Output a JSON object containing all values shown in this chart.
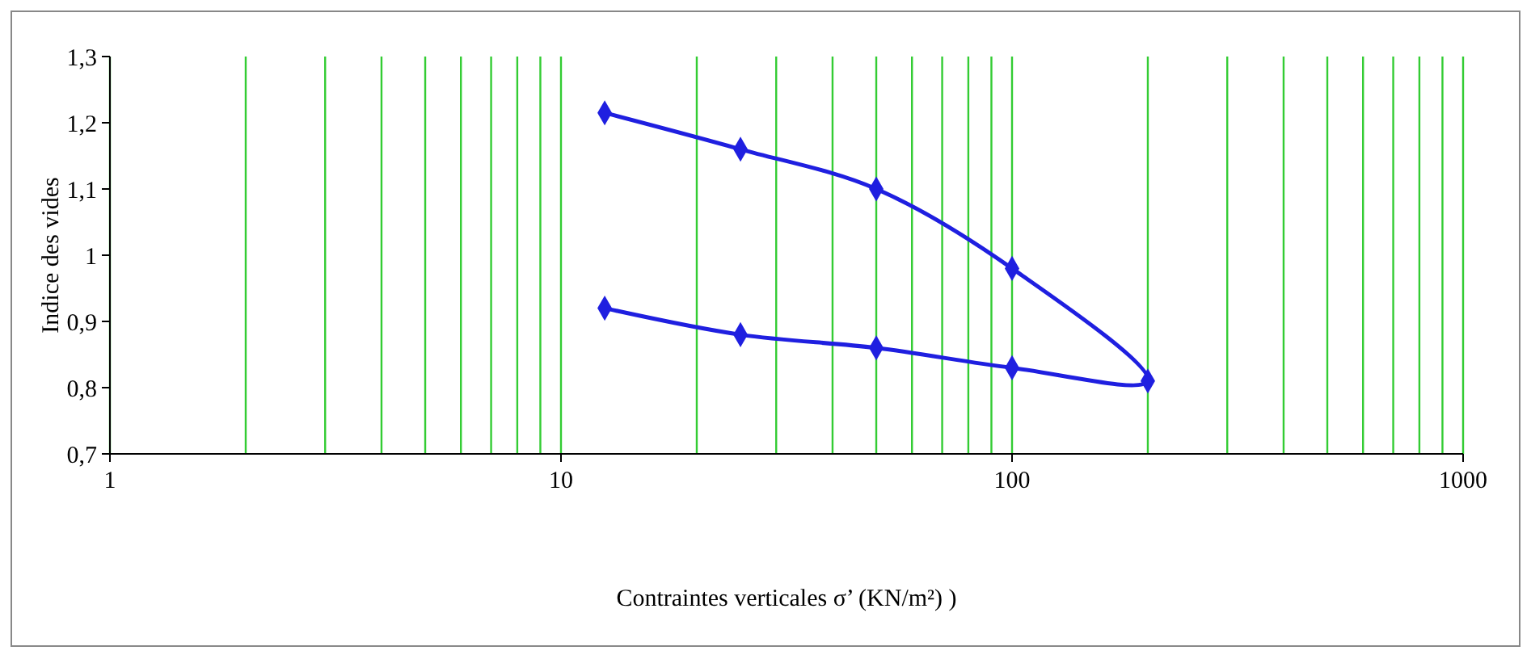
{
  "chart_data": {
    "type": "line",
    "xlabel": "Contraintes verticales σ’ (KN/m²) )",
    "ylabel": "Indice des vides",
    "log": "x",
    "grid": "x",
    "marker": "diamond",
    "line_style": "solid",
    "xlim": [
      1,
      1000
    ],
    "xticks": [
      1,
      {
        "value": 2,
        "label": null
      },
      {
        "value": 3,
        "label": null
      },
      {
        "value": 4,
        "label": null
      },
      {
        "value": 5,
        "label": null
      },
      {
        "value": 6,
        "label": null
      },
      {
        "value": 7,
        "label": null
      },
      {
        "value": 8,
        "label": null
      },
      {
        "value": 9,
        "label": null
      },
      10,
      {
        "value": 20,
        "label": null
      },
      {
        "value": 30,
        "label": null
      },
      {
        "value": 40,
        "label": null
      },
      {
        "value": 50,
        "label": null
      },
      {
        "value": 60,
        "label": null
      },
      {
        "value": 70,
        "label": null
      },
      {
        "value": 80,
        "label": null
      },
      {
        "value": 90,
        "label": null
      },
      100,
      {
        "value": 200,
        "label": null
      },
      {
        "value": 300,
        "label": null
      },
      {
        "value": 400,
        "label": null
      },
      {
        "value": 500,
        "label": null
      },
      {
        "value": 600,
        "label": null
      },
      {
        "value": 700,
        "label": null
      },
      {
        "value": 800,
        "label": null
      },
      {
        "value": 900,
        "label": null
      },
      1000
    ],
    "ylim": [
      0.7,
      1.3
    ],
    "yticks": [
      {
        "value": 0.7,
        "label": "0,7"
      },
      {
        "value": 0.8,
        "label": "0,8"
      },
      {
        "value": 0.9,
        "label": "0,9"
      },
      1,
      {
        "value": 1.1,
        "label": "1,1"
      },
      {
        "value": 1.2,
        "label": "1,2"
      },
      {
        "value": 1.3,
        "label": "1,3"
      }
    ],
    "series": [
      {
        "color": "#1f1fe0",
        "x": [
          12.5,
          25,
          50,
          100,
          200,
          100,
          50,
          25,
          12.5
        ],
        "values": [
          1.215,
          1.16,
          1.1,
          0.98,
          0.81,
          0.83,
          0.86,
          0.88,
          0.92
        ]
      }
    ]
  }
}
